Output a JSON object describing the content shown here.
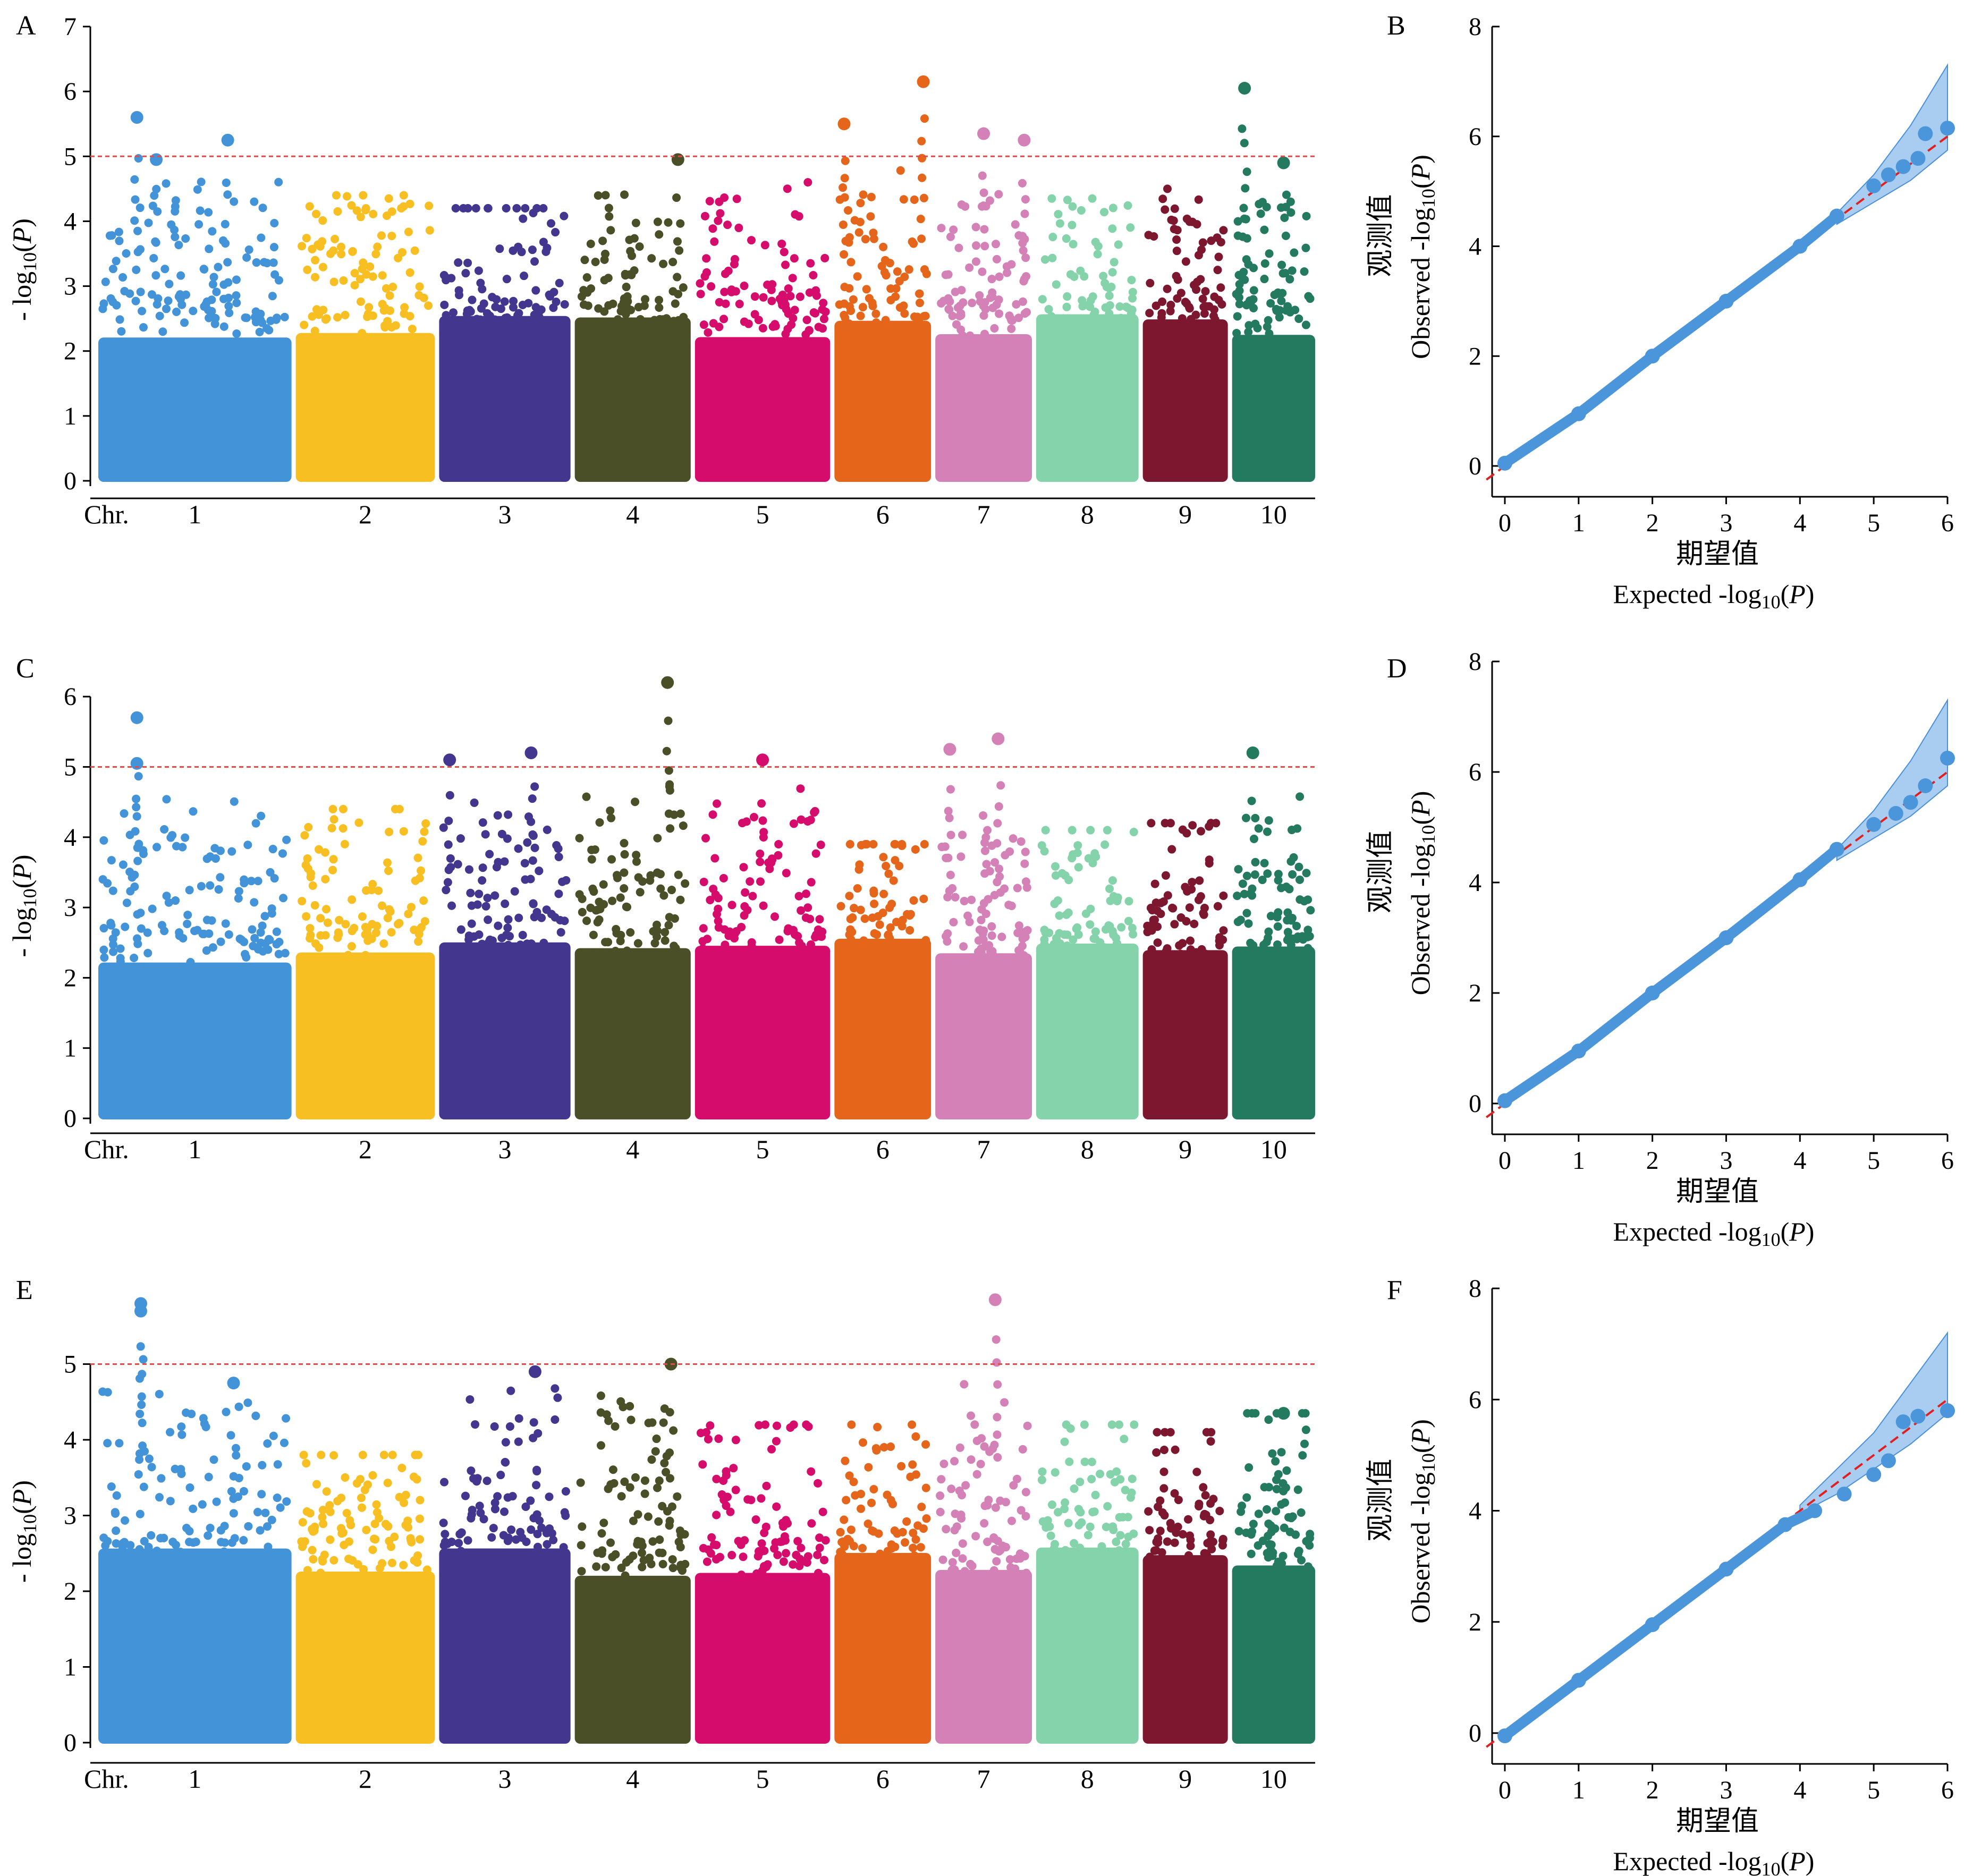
{
  "colors": {
    "chromosomes": [
      "#4393d9",
      "#f7bf22",
      "#43368f",
      "#4a4f27",
      "#d60c6c",
      "#e5661a",
      "#d381b6",
      "#84d3aa",
      "#7d172f",
      "#247a5e"
    ],
    "qq_point": "#4b96db",
    "qq_band": "#a9cdf0",
    "qq_band_edge": "#4a90d9",
    "threshold": "#e34a4a",
    "diagonal": "#e02020"
  },
  "manhattan_common": {
    "chr_label": "Chr.",
    "chromosomes": [
      "1",
      "2",
      "3",
      "4",
      "5",
      "6",
      "7",
      "8",
      "9",
      "10"
    ],
    "ylabel_prefix": "- log",
    "ylabel_sub": "10",
    "ylabel_suffix": "(P)",
    "threshold": 5
  },
  "qq_common": {
    "xlabel_cn": "期望值",
    "xlabel_prefix": "Expected -log",
    "xlabel_sub": "10",
    "xlabel_suffix": "(P)",
    "ylabel_cn": "观测值",
    "ylabel_prefix": "Observed -log",
    "ylabel_sub": "10",
    "ylabel_suffix": "(P)",
    "xticks": [
      "0",
      "1",
      "2",
      "3",
      "4",
      "5",
      "6"
    ],
    "yticks": [
      "0",
      "2",
      "4",
      "6",
      "8"
    ]
  },
  "panels": {
    "A": {
      "letter": "A",
      "yticks": [
        "0",
        "1",
        "2",
        "3",
        "4",
        "5",
        "6",
        "7"
      ]
    },
    "B": {
      "letter": "B"
    },
    "C": {
      "letter": "C",
      "yticks": [
        "0",
        "1",
        "2",
        "3",
        "4",
        "5",
        "6"
      ]
    },
    "D": {
      "letter": "D"
    },
    "E": {
      "letter": "E",
      "yticks": [
        "0",
        "1",
        "2",
        "3",
        "4",
        "5"
      ]
    },
    "F": {
      "letter": "F"
    }
  },
  "chart_data": [
    {
      "panel": "A",
      "type": "scatter",
      "kind": "manhattan",
      "ylim": [
        0,
        7
      ],
      "threshold": 5,
      "chromosome_max": [
        5.6,
        4.4,
        4.2,
        5.0,
        4.6,
        6.15,
        5.35,
        4.35,
        4.5,
        6.05
      ],
      "top_hits": [
        {
          "chr": "1",
          "x": 0.2,
          "y": 5.6
        },
        {
          "chr": "1",
          "x": 0.67,
          "y": 5.25
        },
        {
          "chr": "1",
          "x": 0.3,
          "y": 4.95
        },
        {
          "chr": "4",
          "x": 0.89,
          "y": 4.95
        },
        {
          "chr": "6",
          "x": 0.1,
          "y": 5.5
        },
        {
          "chr": "6",
          "x": 0.92,
          "y": 6.15
        },
        {
          "chr": "7",
          "x": 0.5,
          "y": 5.35
        },
        {
          "chr": "7",
          "x": 0.92,
          "y": 5.25
        },
        {
          "chr": "10",
          "x": 0.15,
          "y": 6.05
        },
        {
          "chr": "10",
          "x": 0.62,
          "y": 4.9
        }
      ]
    },
    {
      "panel": "B",
      "type": "scatter",
      "kind": "qq",
      "xlim": [
        0,
        6
      ],
      "ylim": [
        0,
        8
      ],
      "observed_vs_expected": [
        [
          0,
          0.05
        ],
        [
          1,
          0.95
        ],
        [
          2,
          2.0
        ],
        [
          3,
          3.0
        ],
        [
          4,
          4.0
        ],
        [
          4.5,
          4.55
        ],
        [
          5.0,
          5.1
        ],
        [
          5.2,
          5.3
        ],
        [
          5.4,
          5.45
        ],
        [
          5.6,
          5.6
        ],
        [
          5.7,
          6.05
        ],
        [
          6.0,
          6.15
        ]
      ],
      "ci_upper": [
        [
          4.5,
          4.6
        ],
        [
          5.0,
          5.3
        ],
        [
          5.5,
          6.2
        ],
        [
          6.0,
          7.3
        ]
      ],
      "ci_lower": [
        [
          4.5,
          4.4
        ],
        [
          5.0,
          4.8
        ],
        [
          5.5,
          5.2
        ],
        [
          6.0,
          5.75
        ]
      ]
    },
    {
      "panel": "C",
      "type": "scatter",
      "kind": "manhattan",
      "ylim": [
        0,
        6.5
      ],
      "threshold": 5,
      "chromosome_max": [
        5.7,
        4.4,
        5.2,
        6.2,
        5.1,
        3.9,
        5.4,
        4.1,
        4.2,
        5.2
      ],
      "top_hits": [
        {
          "chr": "1",
          "x": 0.2,
          "y": 5.7
        },
        {
          "chr": "1",
          "x": 0.2,
          "y": 5.05
        },
        {
          "chr": "3",
          "x": 0.08,
          "y": 5.1
        },
        {
          "chr": "3",
          "x": 0.7,
          "y": 5.2
        },
        {
          "chr": "4",
          "x": 0.8,
          "y": 6.2
        },
        {
          "chr": "5",
          "x": 0.5,
          "y": 5.1
        },
        {
          "chr": "7",
          "x": 0.15,
          "y": 5.25
        },
        {
          "chr": "7",
          "x": 0.65,
          "y": 5.4
        },
        {
          "chr": "10",
          "x": 0.25,
          "y": 5.2
        }
      ]
    },
    {
      "panel": "D",
      "type": "scatter",
      "kind": "qq",
      "xlim": [
        0,
        6
      ],
      "ylim": [
        0,
        8
      ],
      "observed_vs_expected": [
        [
          0,
          0.05
        ],
        [
          1,
          0.95
        ],
        [
          2,
          2.0
        ],
        [
          3,
          3.0
        ],
        [
          4,
          4.05
        ],
        [
          4.5,
          4.6
        ],
        [
          5.0,
          5.05
        ],
        [
          5.3,
          5.25
        ],
        [
          5.5,
          5.45
        ],
        [
          5.7,
          5.75
        ],
        [
          6.0,
          6.25
        ]
      ],
      "ci_upper": [
        [
          4.5,
          4.6
        ],
        [
          5.0,
          5.3
        ],
        [
          5.5,
          6.2
        ],
        [
          6.0,
          7.3
        ]
      ],
      "ci_lower": [
        [
          4.5,
          4.4
        ],
        [
          5.0,
          4.8
        ],
        [
          5.5,
          5.2
        ],
        [
          6.0,
          5.75
        ]
      ]
    },
    {
      "panel": "E",
      "type": "scatter",
      "kind": "manhattan",
      "ylim": [
        0,
        6
      ],
      "threshold": 5,
      "chromosome_max": [
        5.8,
        3.8,
        4.9,
        5.0,
        4.2,
        4.2,
        5.85,
        4.2,
        4.1,
        4.35
      ],
      "top_hits": [
        {
          "chr": "1",
          "x": 0.22,
          "y": 5.8
        },
        {
          "chr": "1",
          "x": 0.22,
          "y": 5.7
        },
        {
          "chr": "1",
          "x": 0.7,
          "y": 4.75
        },
        {
          "chr": "3",
          "x": 0.73,
          "y": 4.9
        },
        {
          "chr": "4",
          "x": 0.83,
          "y": 5.0
        },
        {
          "chr": "7",
          "x": 0.62,
          "y": 5.85
        },
        {
          "chr": "10",
          "x": 0.62,
          "y": 4.35
        }
      ]
    },
    {
      "panel": "F",
      "type": "scatter",
      "kind": "qq",
      "xlim": [
        0,
        6
      ],
      "ylim": [
        0,
        8
      ],
      "observed_vs_expected": [
        [
          0,
          -0.05
        ],
        [
          1,
          0.95
        ],
        [
          2,
          1.95
        ],
        [
          3,
          2.95
        ],
        [
          3.8,
          3.75
        ],
        [
          4.2,
          4.0
        ],
        [
          4.6,
          4.3
        ],
        [
          5.0,
          4.65
        ],
        [
          5.2,
          4.9
        ],
        [
          5.4,
          5.6
        ],
        [
          5.6,
          5.7
        ],
        [
          6.0,
          5.8
        ]
      ],
      "ci_upper": [
        [
          4.0,
          4.1
        ],
        [
          4.5,
          4.75
        ],
        [
          5.0,
          5.4
        ],
        [
          5.5,
          6.3
        ],
        [
          6.0,
          7.2
        ]
      ],
      "ci_lower": [
        [
          4.0,
          3.95
        ],
        [
          4.5,
          4.3
        ],
        [
          5.0,
          4.75
        ],
        [
          5.5,
          5.2
        ],
        [
          6.0,
          5.75
        ]
      ]
    }
  ]
}
